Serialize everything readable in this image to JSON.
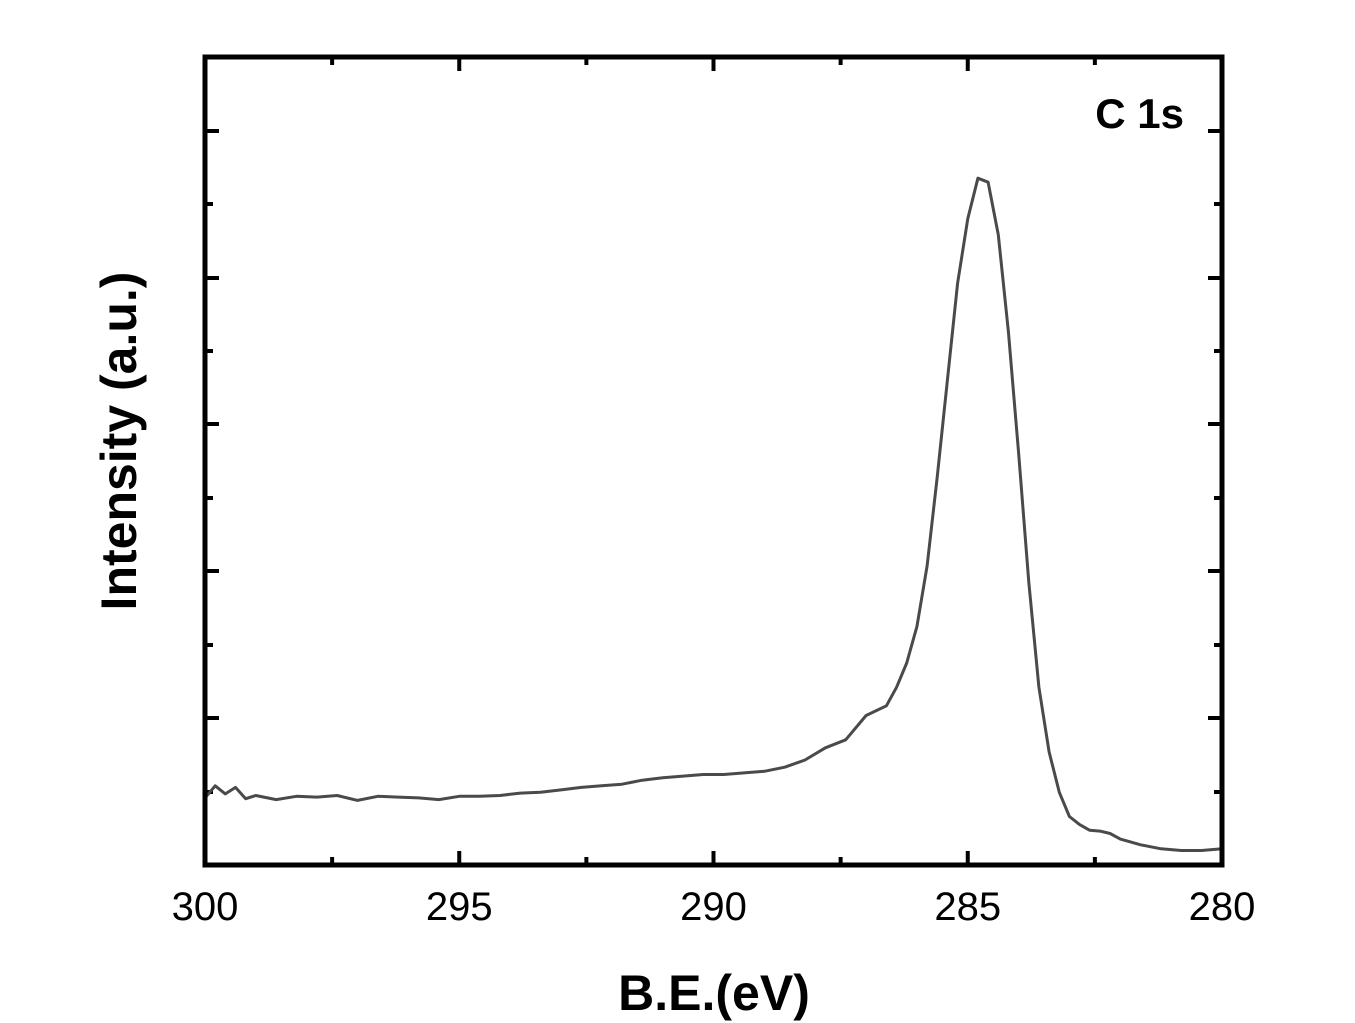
{
  "chart_data": {
    "type": "line",
    "title": "",
    "xlabel": "B.E.(eV)",
    "ylabel": "Intensity (a.u.)",
    "annotation": "C 1s",
    "x_reversed": true,
    "xlim": [
      300,
      280
    ],
    "ylim": [
      0,
      100
    ],
    "y_tick_labels_shown": false,
    "x_ticks": [
      300,
      295,
      290,
      285,
      280
    ],
    "x_tick_labels": [
      "300",
      "295",
      "290",
      "285",
      "280"
    ],
    "grid": false,
    "line_color": "#4a4a4a",
    "series": [
      {
        "x": [
          300.0,
          299.8,
          299.6,
          299.4,
          299.2,
          299.0,
          298.6,
          298.2,
          297.8,
          297.4,
          297.0,
          296.6,
          296.2,
          295.8,
          295.4,
          295.0,
          294.6,
          294.2,
          293.8,
          293.4,
          293.0,
          292.6,
          292.2,
          291.8,
          291.4,
          291.0,
          290.6,
          290.2,
          289.8,
          289.4,
          289.0,
          288.6,
          288.2,
          287.8,
          287.4,
          287.0,
          286.6,
          286.4,
          286.2,
          286.0,
          285.8,
          285.6,
          285.4,
          285.2,
          285.0,
          284.8,
          284.6,
          284.4,
          284.2,
          284.0,
          283.8,
          283.6,
          283.4,
          283.2,
          283.0,
          282.8,
          282.6,
          282.4,
          282.2,
          282.0,
          281.6,
          281.2,
          280.8,
          280.4,
          280.0
        ],
        "y": [
          8.3,
          9.8,
          8.8,
          9.6,
          8.2,
          8.6,
          8.1,
          8.5,
          8.4,
          8.6,
          8.0,
          8.5,
          8.4,
          8.3,
          8.1,
          8.5,
          8.5,
          8.6,
          8.9,
          9.0,
          9.3,
          9.6,
          9.8,
          10.0,
          10.5,
          10.8,
          11.0,
          11.2,
          11.2,
          11.4,
          11.6,
          12.1,
          13.0,
          14.5,
          15.5,
          18.5,
          19.7,
          22.0,
          25.0,
          29.5,
          37.0,
          48.0,
          60.0,
          72.0,
          80.0,
          85.0,
          84.5,
          78.0,
          66.0,
          51.0,
          35.0,
          22.0,
          14.0,
          9.0,
          6.0,
          5.0,
          4.3,
          4.2,
          3.9,
          3.2,
          2.5,
          2.0,
          1.8,
          1.8,
          2.0
        ]
      }
    ]
  }
}
